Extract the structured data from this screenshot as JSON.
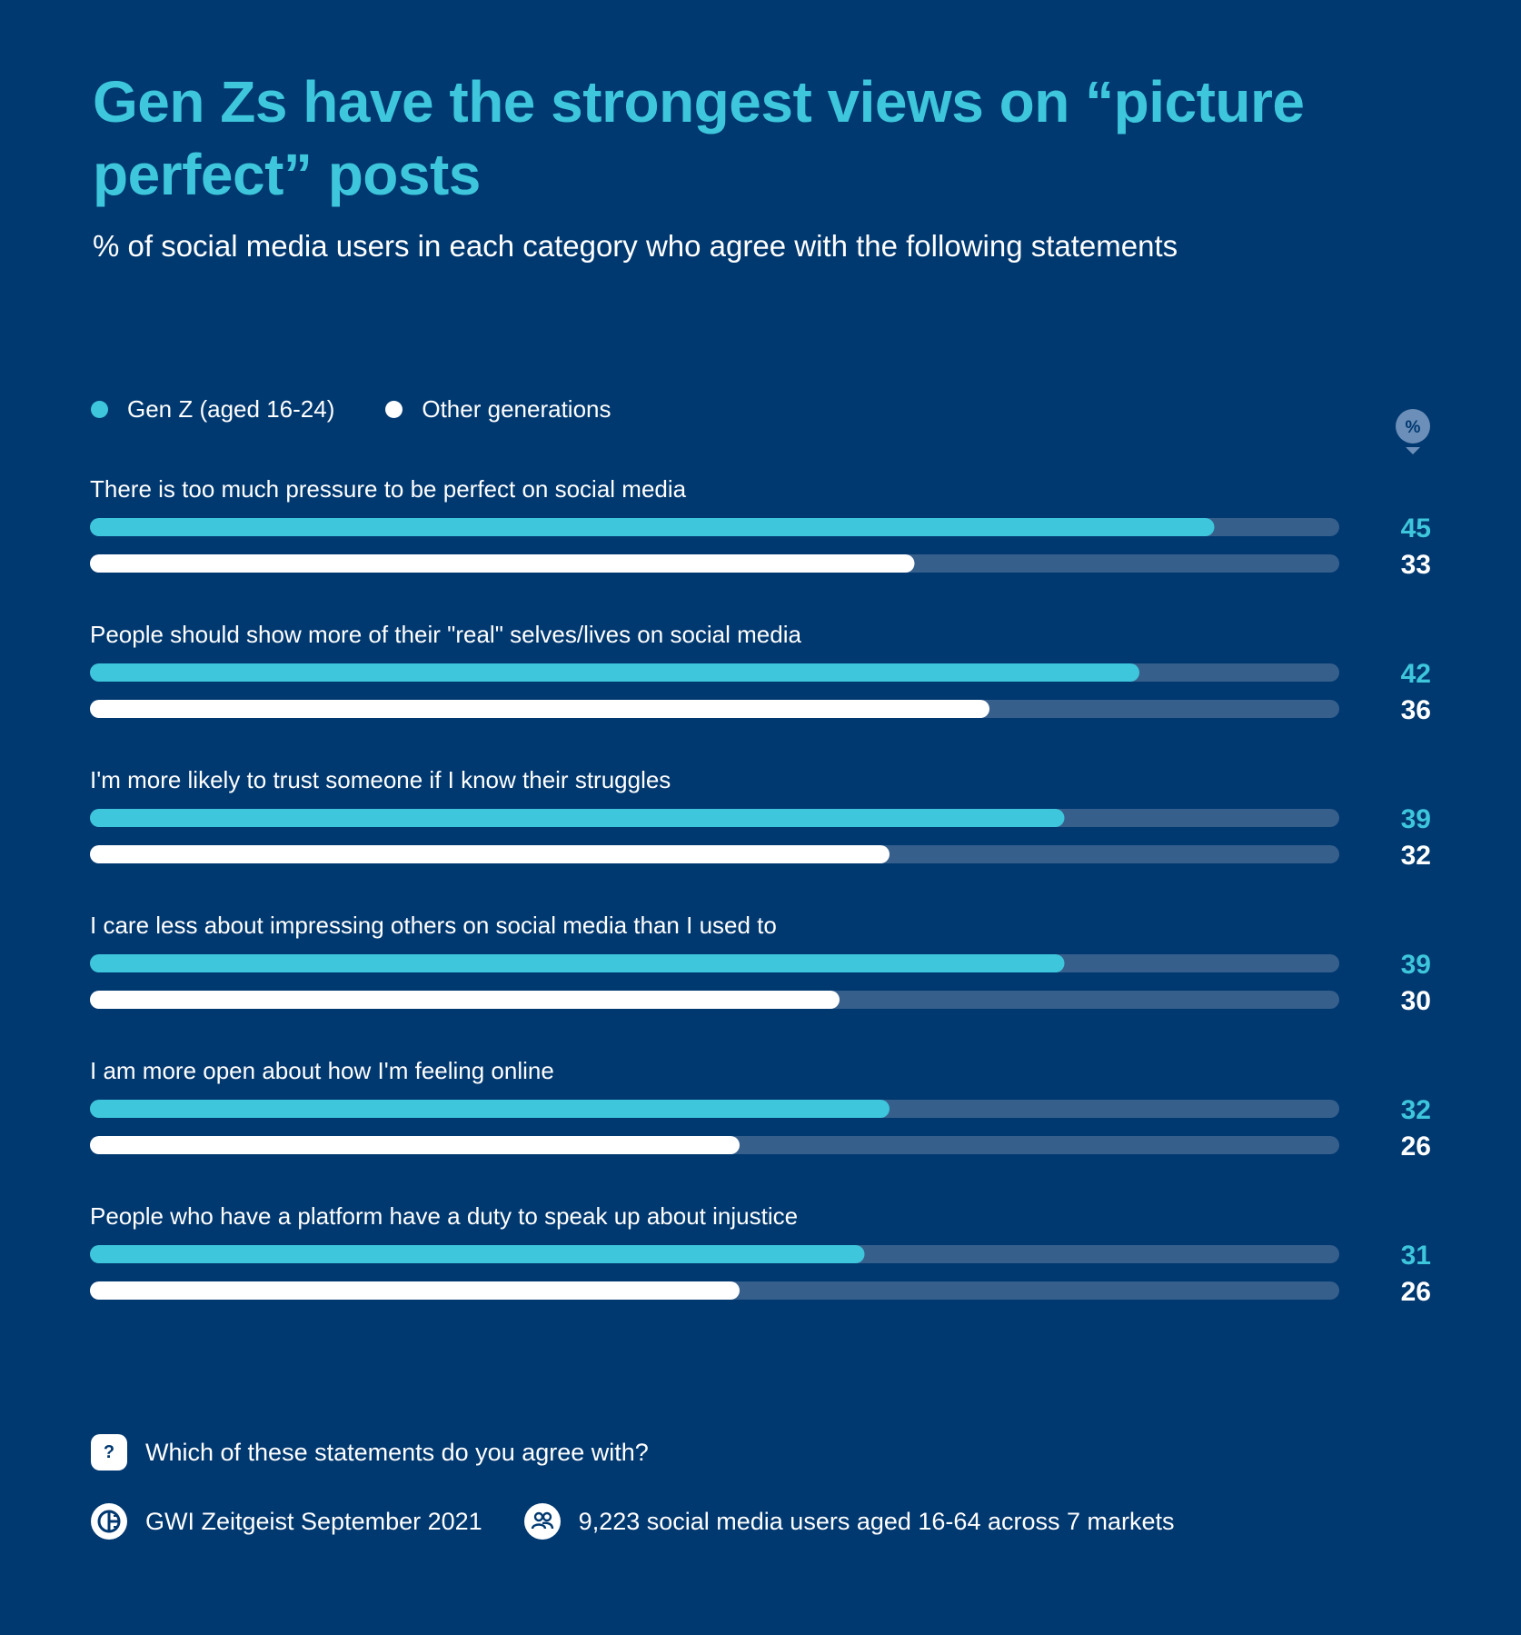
{
  "header": {
    "title": "Gen Zs have the strongest views on “picture perfect” posts",
    "subtitle": "% of social media users in each category who agree with the following statements"
  },
  "legend": {
    "items": [
      {
        "label": "Gen Z (aged 16-24)",
        "color": "#3ec6dc"
      },
      {
        "label": "Other generations",
        "color": "#ffffff"
      }
    ]
  },
  "badge": {
    "label": "%"
  },
  "colors": {
    "background": "#003870",
    "accent": "#3ec6dc",
    "secondary": "#ffffff",
    "track": "#365f8c"
  },
  "chart_data": {
    "type": "bar",
    "orientation": "horizontal",
    "xlim": [
      0,
      50
    ],
    "categories": [
      "There is too much pressure to be perfect on social media",
      "People should show more of their \"real\" selves/lives on social media",
      "I'm more likely to trust someone if I know their struggles",
      "I care less about impressing others on social media than I used to",
      "I am more open about how I'm feeling online",
      "People who have a platform have a duty to speak up about injustice"
    ],
    "series": [
      {
        "name": "Gen Z (aged 16-24)",
        "color": "#3ec6dc",
        "values": [
          45,
          42,
          39,
          39,
          32,
          31
        ]
      },
      {
        "name": "Other generations",
        "color": "#ffffff",
        "values": [
          33,
          36,
          32,
          30,
          26,
          26
        ]
      }
    ],
    "unit": "%"
  },
  "footer": {
    "question": "Which of these statements do you agree with?",
    "question_icon": "?",
    "source": "GWI Zeitgeist September 2021",
    "sample": "9,223 social media users aged 16-64 across 7 markets"
  }
}
